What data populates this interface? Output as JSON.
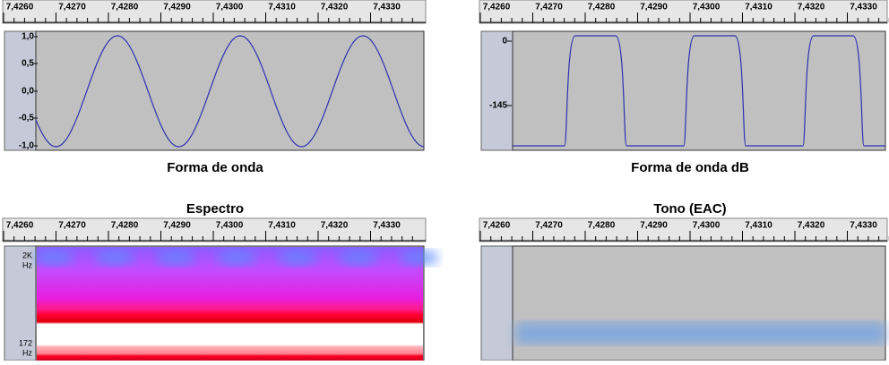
{
  "panels": [
    {
      "ruler": [
        "7,4260",
        "7,4270",
        "7,4280",
        "7,4290",
        "7,4300",
        "7,4310",
        "7,4320",
        "7,4330"
      ],
      "y_labels": [
        "1,0",
        "0,5",
        "0,0",
        "-0,5",
        "-1,0"
      ],
      "caption": "Forma de onda"
    },
    {
      "ruler": [
        "7,4260",
        "7,4270",
        "7,4280",
        "7,4290",
        "7,4300",
        "7,4310",
        "7,4320",
        "7,4330"
      ],
      "y_labels": [
        "0",
        "-145"
      ],
      "caption": "Forma de onda dB"
    },
    {
      "ruler": [
        "7,4260",
        "7,4270",
        "7,4280",
        "7,4290",
        "7,4300",
        "7,4310",
        "7,4320",
        "7,4330"
      ],
      "y_labels": [
        [
          "2K",
          "Hz"
        ],
        [
          "172",
          "Hz"
        ]
      ],
      "caption": "Espectro"
    },
    {
      "ruler": [
        "7,4260",
        "7,4270",
        "7,4280",
        "7,4290",
        "7,4300",
        "7,4310",
        "7,4320",
        "7,4330"
      ],
      "y_labels": [],
      "caption": "Tono (EAC)"
    }
  ]
}
